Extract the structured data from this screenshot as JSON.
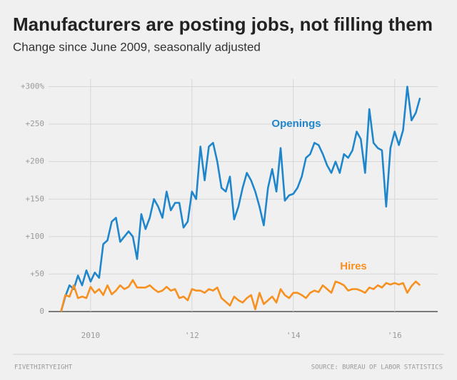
{
  "chart_data": {
    "type": "line",
    "title": "Manufacturers are posting jobs, not filling them",
    "subtitle": "Change since June 2009, seasonally adjusted",
    "x": [
      2009.417,
      2009.5,
      2009.583,
      2009.667,
      2009.75,
      2009.833,
      2009.917,
      2010,
      2010.083,
      2010.167,
      2010.25,
      2010.333,
      2010.417,
      2010.5,
      2010.583,
      2010.667,
      2010.75,
      2010.833,
      2010.917,
      2011,
      2011.083,
      2011.167,
      2011.25,
      2011.333,
      2011.417,
      2011.5,
      2011.583,
      2011.667,
      2011.75,
      2011.833,
      2011.917,
      2012,
      2012.083,
      2012.167,
      2012.25,
      2012.333,
      2012.417,
      2012.5,
      2012.583,
      2012.667,
      2012.75,
      2012.833,
      2012.917,
      2013,
      2013.083,
      2013.167,
      2013.25,
      2013.333,
      2013.417,
      2013.5,
      2013.583,
      2013.667,
      2013.75,
      2013.833,
      2013.917,
      2014,
      2014.083,
      2014.167,
      2014.25,
      2014.333,
      2014.417,
      2014.5,
      2014.583,
      2014.667,
      2014.75,
      2014.833,
      2014.917,
      2015,
      2015.083,
      2015.167,
      2015.25,
      2015.333,
      2015.417,
      2015.5,
      2015.583,
      2015.667,
      2015.75,
      2015.833,
      2015.917,
      2016,
      2016.083,
      2016.167,
      2016.25,
      2016.333,
      2016.417,
      2016.5
    ],
    "series": [
      {
        "name": "Openings",
        "color": "#1f86cc",
        "values": [
          0,
          20,
          35,
          30,
          48,
          35,
          55,
          40,
          52,
          45,
          90,
          95,
          120,
          125,
          93,
          100,
          107,
          100,
          70,
          130,
          110,
          125,
          150,
          140,
          125,
          160,
          135,
          145,
          145,
          112,
          120,
          160,
          150,
          220,
          175,
          220,
          225,
          200,
          165,
          160,
          180,
          123,
          140,
          165,
          185,
          175,
          160,
          140,
          115,
          165,
          190,
          160,
          218,
          148,
          155,
          157,
          165,
          180,
          205,
          210,
          225,
          222,
          210,
          195,
          185,
          200,
          185,
          210,
          205,
          215,
          240,
          230,
          185,
          270,
          225,
          218,
          215,
          140,
          218,
          240,
          222,
          242,
          300,
          255,
          265,
          285
        ]
      },
      {
        "name": "Hires",
        "color": "#f7901e",
        "values": [
          0,
          22,
          20,
          35,
          18,
          20,
          18,
          33,
          25,
          30,
          22,
          35,
          23,
          28,
          35,
          30,
          33,
          42,
          32,
          32,
          32,
          35,
          30,
          26,
          28,
          33,
          28,
          30,
          18,
          20,
          15,
          30,
          28,
          28,
          25,
          30,
          28,
          32,
          18,
          13,
          8,
          20,
          15,
          12,
          18,
          22,
          3,
          25,
          10,
          15,
          20,
          12,
          30,
          22,
          18,
          25,
          25,
          22,
          18,
          25,
          28,
          26,
          35,
          30,
          25,
          40,
          38,
          35,
          28,
          30,
          30,
          28,
          25,
          32,
          30,
          35,
          32,
          38,
          36,
          38,
          36,
          38,
          25,
          34,
          40,
          35
        ]
      }
    ],
    "xlim": [
      2009.17,
      2016.85
    ],
    "xticks": [
      2010,
      {
        "value": 2012,
        "label": "'12"
      },
      {
        "value": 2014,
        "label": "'14"
      },
      {
        "value": 2016,
        "label": "'16"
      }
    ],
    "ylim": [
      0,
      310
    ],
    "yticks": [
      0,
      {
        "value": 50,
        "label": "+50"
      },
      {
        "value": 100,
        "label": "+100"
      },
      {
        "value": 150,
        "label": "+150"
      },
      {
        "value": 200,
        "label": "+200"
      },
      {
        "value": 250,
        "label": "+250"
      },
      {
        "value": 300,
        "label": "+300%"
      }
    ],
    "grid": true,
    "brand": "FIVETHIRTYEIGHT",
    "source": "SOURCE: BUREAU OF LABOR STATISTICS"
  }
}
